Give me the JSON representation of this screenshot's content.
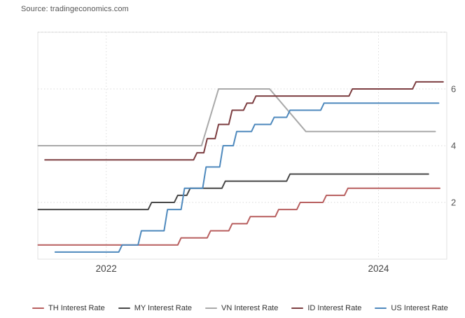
{
  "source": "Source: tradingeconomics.com",
  "chart_data": {
    "type": "line",
    "title": "",
    "xlabel": "",
    "ylabel": "",
    "ylim": [
      0,
      8
    ],
    "grid": true,
    "legend_position": "bottom",
    "x_axis": {
      "epoch_month": "2021-07",
      "unit": "months",
      "ticks": [
        {
          "month_index": 6,
          "label": "2022"
        },
        {
          "month_index": 30,
          "label": "2024"
        }
      ]
    },
    "y_axis": {
      "side": "right",
      "ticks": [
        2,
        4,
        6
      ]
    },
    "series": [
      {
        "name": "TH Interest Rate",
        "color": "#b85f5f",
        "points": [
          [
            0,
            0.5
          ],
          [
            12.3,
            0.5
          ],
          [
            12.6,
            0.75
          ],
          [
            14.9,
            0.75
          ],
          [
            15.2,
            1.0
          ],
          [
            16.8,
            1.0
          ],
          [
            17.1,
            1.25
          ],
          [
            18.4,
            1.25
          ],
          [
            18.7,
            1.5
          ],
          [
            20.9,
            1.5
          ],
          [
            21.2,
            1.75
          ],
          [
            22.8,
            1.75
          ],
          [
            23.1,
            2.0
          ],
          [
            25.1,
            2.0
          ],
          [
            25.4,
            2.25
          ],
          [
            27.0,
            2.25
          ],
          [
            27.3,
            2.5
          ],
          [
            35.4,
            2.5
          ]
        ]
      },
      {
        "name": "MY Interest Rate",
        "color": "#474747",
        "points": [
          [
            0,
            1.75
          ],
          [
            9.7,
            1.75
          ],
          [
            10.0,
            2.0
          ],
          [
            12.0,
            2.0
          ],
          [
            12.3,
            2.25
          ],
          [
            13.1,
            2.25
          ],
          [
            13.4,
            2.5
          ],
          [
            16.2,
            2.5
          ],
          [
            16.5,
            2.75
          ],
          [
            21.9,
            2.75
          ],
          [
            22.2,
            3.0
          ],
          [
            34.4,
            3.0
          ]
        ]
      },
      {
        "name": "VN Interest Rate",
        "color": "#a9a9a9",
        "points": [
          [
            0,
            4.0
          ],
          [
            14.4,
            4.0
          ],
          [
            15.9,
            6.0
          ],
          [
            20.4,
            6.0
          ],
          [
            23.6,
            4.5
          ],
          [
            35.0,
            4.5
          ]
        ]
      },
      {
        "name": "ID Interest Rate",
        "color": "#7d3e41",
        "points": [
          [
            0.6,
            3.5
          ],
          [
            13.7,
            3.5
          ],
          [
            14.0,
            3.75
          ],
          [
            14.6,
            3.75
          ],
          [
            14.9,
            4.25
          ],
          [
            15.6,
            4.25
          ],
          [
            15.9,
            4.75
          ],
          [
            16.8,
            4.75
          ],
          [
            17.1,
            5.25
          ],
          [
            18.1,
            5.25
          ],
          [
            18.4,
            5.5
          ],
          [
            18.9,
            5.5
          ],
          [
            19.2,
            5.75
          ],
          [
            27.4,
            5.75
          ],
          [
            27.7,
            6.0
          ],
          [
            33.0,
            6.0
          ],
          [
            33.3,
            6.25
          ],
          [
            35.7,
            6.25
          ]
        ]
      },
      {
        "name": "US Interest Rate",
        "color": "#4e89bd",
        "points": [
          [
            1.5,
            0.25
          ],
          [
            7.1,
            0.25
          ],
          [
            7.4,
            0.5
          ],
          [
            8.8,
            0.5
          ],
          [
            9.1,
            1.0
          ],
          [
            11.1,
            1.0
          ],
          [
            11.4,
            1.75
          ],
          [
            12.6,
            1.75
          ],
          [
            12.9,
            2.5
          ],
          [
            14.5,
            2.5
          ],
          [
            14.8,
            3.25
          ],
          [
            16.0,
            3.25
          ],
          [
            16.3,
            4.0
          ],
          [
            17.2,
            4.0
          ],
          [
            17.5,
            4.5
          ],
          [
            18.8,
            4.5
          ],
          [
            19.1,
            4.75
          ],
          [
            20.5,
            4.75
          ],
          [
            20.8,
            5.0
          ],
          [
            21.9,
            5.0
          ],
          [
            22.2,
            5.25
          ],
          [
            24.9,
            5.25
          ],
          [
            25.2,
            5.5
          ],
          [
            35.3,
            5.5
          ]
        ]
      }
    ]
  }
}
